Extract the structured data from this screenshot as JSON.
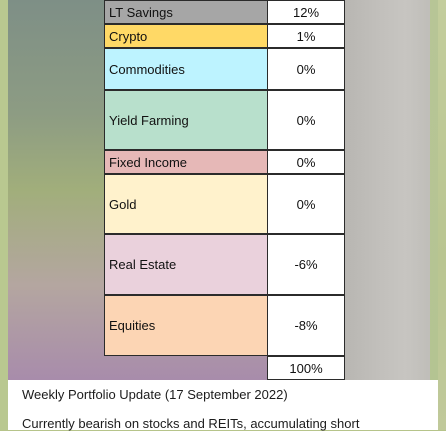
{
  "portfolio_table": {
    "rows": [
      {
        "name": "LT Savings",
        "value": "12%",
        "color": "#a6a6a6"
      },
      {
        "name": "Crypto",
        "value": "1%",
        "color": "#ffd966"
      },
      {
        "name": "Commodities",
        "value": "0%",
        "color": "#bdf3ff"
      },
      {
        "name": "Yield Farming",
        "value": "0%",
        "color": "#b8e0cc"
      },
      {
        "name": "Fixed Income",
        "value": "0%",
        "color": "#e6b8b7"
      },
      {
        "name": "Gold",
        "value": "0%",
        "color": "#fff2cc"
      },
      {
        "name": "Real Estate",
        "value": "-6%",
        "color": "#ead1dc"
      },
      {
        "name": "Equities",
        "value": "-8%",
        "color": "#fcd5b4"
      }
    ],
    "total": "100%"
  },
  "message": {
    "line1": "Weekly Portfolio Update (17 September 2022)",
    "line2": "Currently bearish on stocks and REITs, accumulating short"
  }
}
